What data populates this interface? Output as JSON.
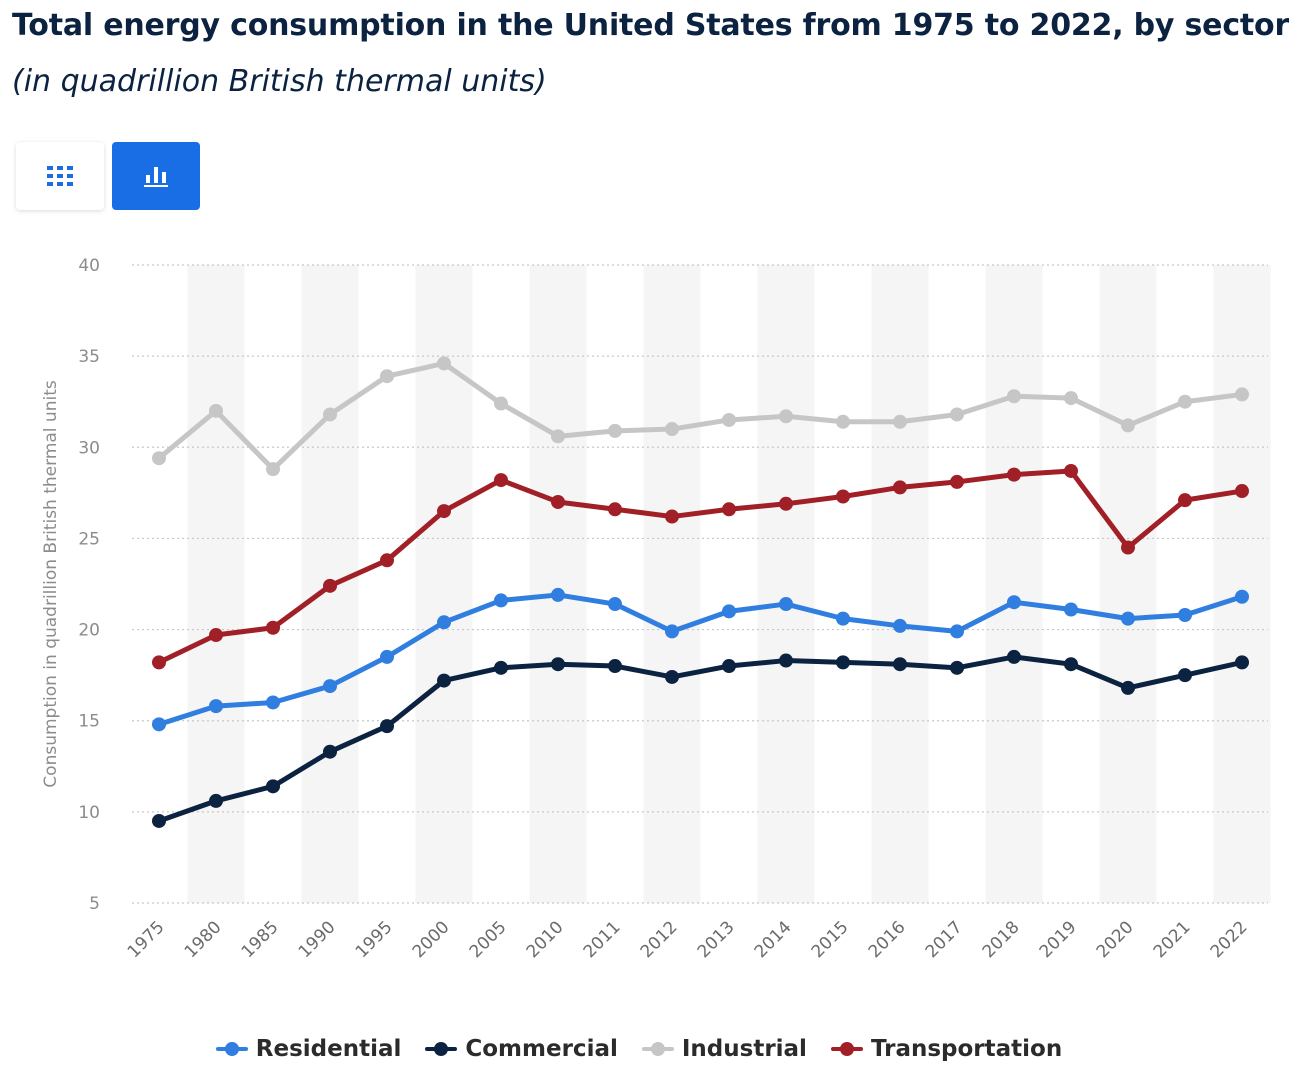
{
  "header": {
    "title": "Total energy consumption in the United States from 1975 to 2022, by sector",
    "subtitle": "(in quadrillion British thermal units)"
  },
  "toolbar": {
    "table_view_icon": "grid-icon",
    "chart_view_icon": "bar-chart-icon",
    "active_view": "chart"
  },
  "chart_data": {
    "type": "line",
    "title": "Total energy consumption in the United States from 1975 to 2022, by sector",
    "subtitle": "(in quadrillion British thermal units)",
    "xlabel": "",
    "ylabel": "Consumption in quadrillion British thermal units",
    "ylim": [
      5,
      40
    ],
    "yticks": [
      5,
      10,
      15,
      20,
      25,
      30,
      35,
      40
    ],
    "grid": true,
    "legend_position": "bottom",
    "categories": [
      "1975",
      "1980",
      "1985",
      "1990",
      "1995",
      "2000",
      "2005",
      "2010",
      "2011",
      "2012",
      "2013",
      "2014",
      "2015",
      "2016",
      "2017",
      "2018",
      "2019",
      "2020",
      "2021",
      "2022"
    ],
    "series": [
      {
        "name": "Residential",
        "color": "#2f7ee0",
        "values": [
          14.8,
          15.8,
          16.0,
          16.9,
          18.5,
          20.4,
          21.6,
          21.9,
          21.4,
          19.9,
          21.0,
          21.4,
          20.6,
          20.2,
          19.9,
          21.5,
          21.1,
          20.6,
          20.8,
          21.8
        ]
      },
      {
        "name": "Commercial",
        "color": "#0b2340",
        "values": [
          9.5,
          10.6,
          11.4,
          13.3,
          14.7,
          17.2,
          17.9,
          18.1,
          18.0,
          17.4,
          18.0,
          18.3,
          18.2,
          18.1,
          17.9,
          18.5,
          18.1,
          16.8,
          17.5,
          18.2
        ]
      },
      {
        "name": "Industrial",
        "color": "#c6c6c6",
        "values": [
          29.4,
          32.0,
          28.8,
          31.8,
          33.9,
          34.6,
          32.4,
          30.6,
          30.9,
          31.0,
          31.5,
          31.7,
          31.4,
          31.4,
          31.8,
          32.8,
          32.7,
          31.2,
          32.5,
          32.9
        ]
      },
      {
        "name": "Transportation",
        "color": "#a11f26",
        "values": [
          18.2,
          19.7,
          20.1,
          22.4,
          23.8,
          26.5,
          28.2,
          27.0,
          26.6,
          26.2,
          26.6,
          26.9,
          27.3,
          27.8,
          28.1,
          28.5,
          28.7,
          24.5,
          27.1,
          27.6
        ]
      }
    ]
  }
}
